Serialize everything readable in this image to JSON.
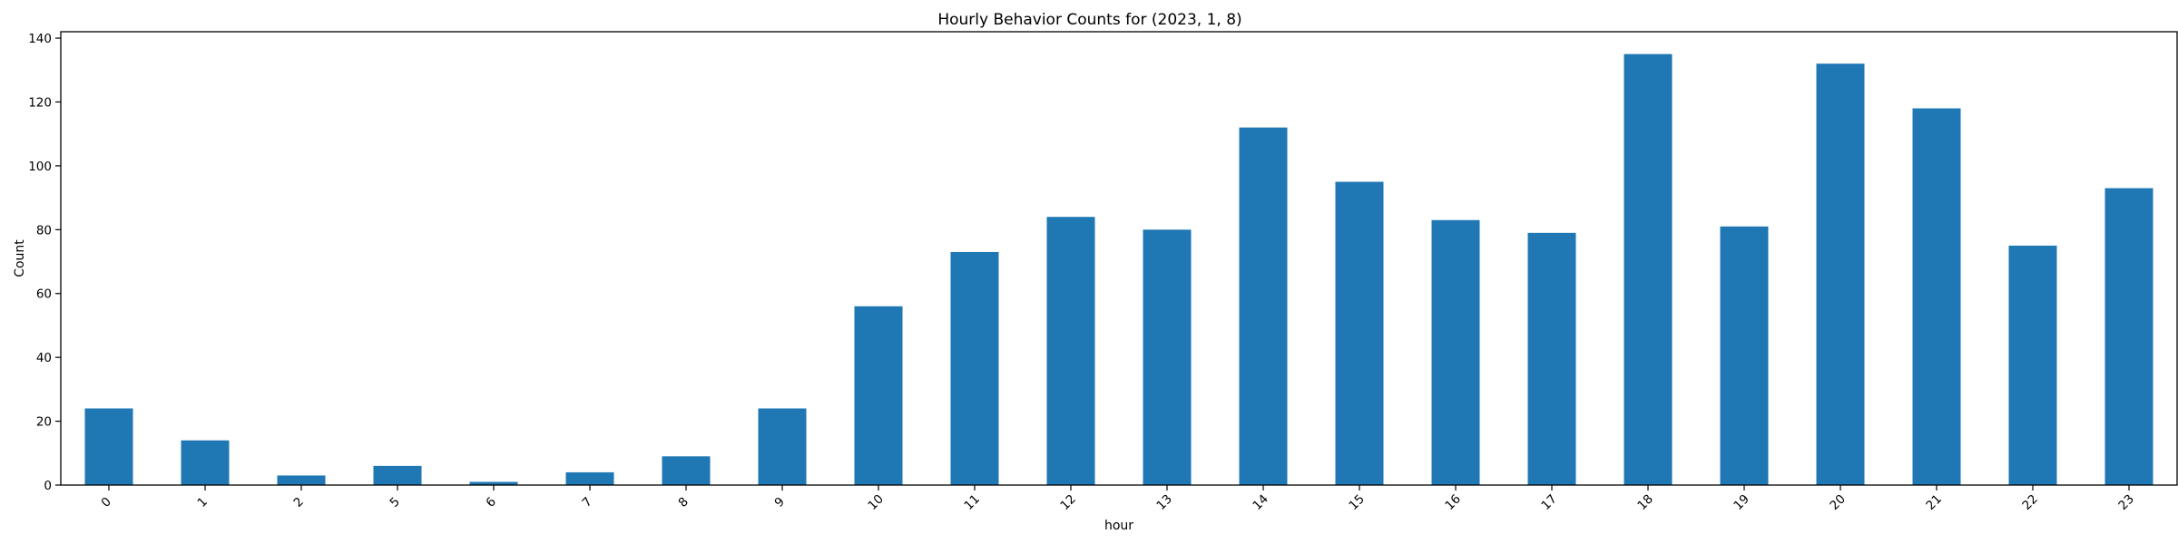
{
  "chart_data": {
    "type": "bar",
    "title": "Hourly Behavior Counts for (2023, 1, 8)",
    "xlabel": "hour",
    "ylabel": "Count",
    "categories": [
      "0",
      "1",
      "2",
      "5",
      "6",
      "7",
      "8",
      "9",
      "10",
      "11",
      "12",
      "13",
      "14",
      "15",
      "16",
      "17",
      "18",
      "19",
      "20",
      "21",
      "22",
      "23"
    ],
    "values": [
      24,
      14,
      3,
      6,
      1,
      4,
      9,
      24,
      56,
      73,
      84,
      80,
      112,
      95,
      83,
      79,
      135,
      81,
      132,
      118,
      75,
      93
    ],
    "ylim": [
      0,
      142
    ],
    "yticks": [
      0,
      20,
      40,
      60,
      80,
      100,
      120,
      140
    ],
    "grid": false,
    "legend": "none",
    "bar_color": "#1f77b4"
  }
}
